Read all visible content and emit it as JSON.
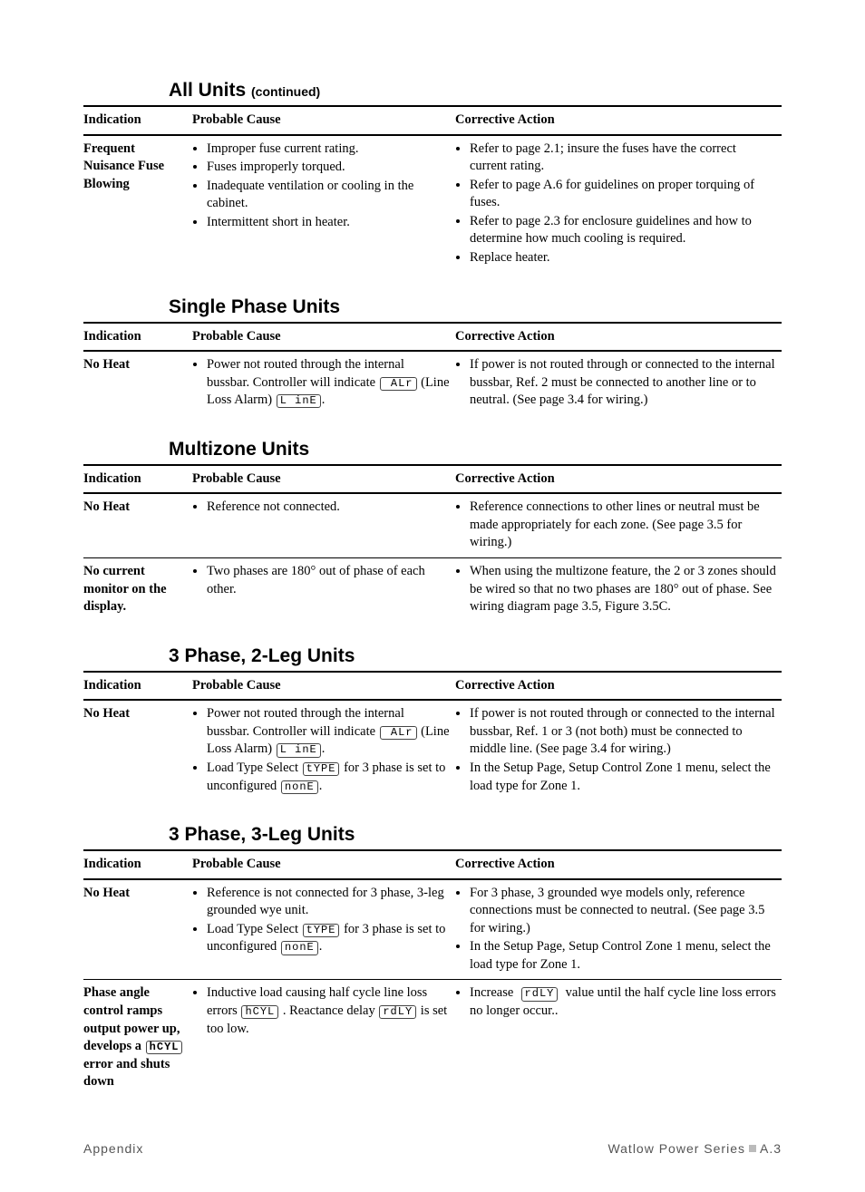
{
  "sections": [
    {
      "title": "All Units",
      "continued": "(continued)",
      "headers": {
        "c1": "Indication",
        "c2": "Probable Cause",
        "c3": "Corrective Action"
      },
      "rows": [
        {
          "indication": "Frequent Nuisance Fuse Blowing",
          "causes": [
            "Improper fuse current rating.",
            "Fuses improperly torqued.",
            "Inadequate ventilation or cooling in the cabinet.",
            "Intermittent short in heater."
          ],
          "actions": [
            "Refer to page 2.1; insure the fuses have the correct current rating.",
            "Refer to page A.6 for guidelines on proper torquing of fuses.",
            "Refer to page 2.3 for enclosure guidelines and how to determine how much cooling is required.",
            "Replace heater."
          ]
        }
      ]
    },
    {
      "title": "Single Phase Units",
      "headers": {
        "c1": "Indication",
        "c2": "Probable Cause",
        "c3": "Corrective Action"
      },
      "rows": [
        {
          "indication": "No Heat",
          "cause_html": "Power not routed through the internal bussbar. Controller will indicate <span class='lcd'>&nbsp;ALr</span> (Line Loss Alarm) <span class='lcd'>L&nbsp;inE</span>.",
          "actions": [
            "If power is not routed through or connected to the internal bussbar, Ref. 2 must be connected to another line or to neutral. (See page 3.4 for wiring.)"
          ]
        }
      ]
    },
    {
      "title": "Multizone Units",
      "headers": {
        "c1": "Indication",
        "c2": "Probable Cause",
        "c3": "Corrective Action"
      },
      "rows": [
        {
          "indication": "No Heat",
          "causes": [
            "Reference not connected."
          ],
          "actions": [
            "Reference connections to other lines or neutral must be made appropriately for each zone. (See page 3.5 for wiring.)"
          ]
        },
        {
          "indication": "No current monitor on the display.",
          "causes": [
            "Two phases are 180° out of phase of each other."
          ],
          "actions": [
            "When using the multizone feature, the 2 or 3 zones should be wired so that no two phases are 180° out of phase. See wiring diagram page 3.5, Figure 3.5C."
          ]
        }
      ]
    },
    {
      "title": "3 Phase, 2-Leg Units",
      "headers": {
        "c1": "Indication",
        "c2": "Probable Cause",
        "c3": "Corrective Action"
      },
      "rows": [
        {
          "indication": "No Heat",
          "causes_html": [
            "Power not routed through the internal bussbar. Controller will indicate <span class='lcd'>&nbsp;ALr</span> (Line Loss Alarm) <span class='lcd'>L&nbsp;inE</span>.",
            "Load Type Select <span class='lcd'>tYPE</span> for 3 phase is set to unconfigured <span class='lcd'>nonE</span>."
          ],
          "actions": [
            "If power is not routed through or connected to the internal bussbar, Ref. 1 or 3 (not both) must be connected to middle line. (See page 3.4 for wiring.)",
            "In the Setup Page, Setup Control Zone 1 menu, select the load type for Zone 1."
          ]
        }
      ]
    },
    {
      "title": "3 Phase, 3-Leg Units",
      "headers": {
        "c1": "Indication",
        "c2": "Probable Cause",
        "c3": "Corrective Action"
      },
      "rows": [
        {
          "indication": "No Heat",
          "causes_html": [
            "Reference is not connected for 3 phase, 3-leg grounded wye unit.",
            "Load Type Select <span class='lcd'>tYPE</span> for 3 phase is set to unconfigured <span class='lcd'>nonE</span>."
          ],
          "actions": [
            "For 3 phase, 3 grounded wye models only, reference connections must be connected to neutral. (See page 3.5 for wiring.)",
            "In the Setup Page, Setup Control Zone 1 menu, select the load type for Zone 1."
          ]
        },
        {
          "indication_html": "Phase angle control ramps output power up, develops a <span class='lcd'>hCYL</span> error and shuts down",
          "causes_html": [
            "Inductive load causing half cycle line loss errors <span class='lcd'>hCYL</span> . Reactance delay <span class='lcd'>rdLY</span> is set too low."
          ],
          "actions_html": [
            "Increase &nbsp;<span class='lcd'>rdLY</span>&nbsp; value until the half cycle line loss errors no longer occur.."
          ]
        }
      ]
    }
  ],
  "footer": {
    "left": "Appendix",
    "right_brand": "Watlow Power Series",
    "right_page": "A.3"
  }
}
